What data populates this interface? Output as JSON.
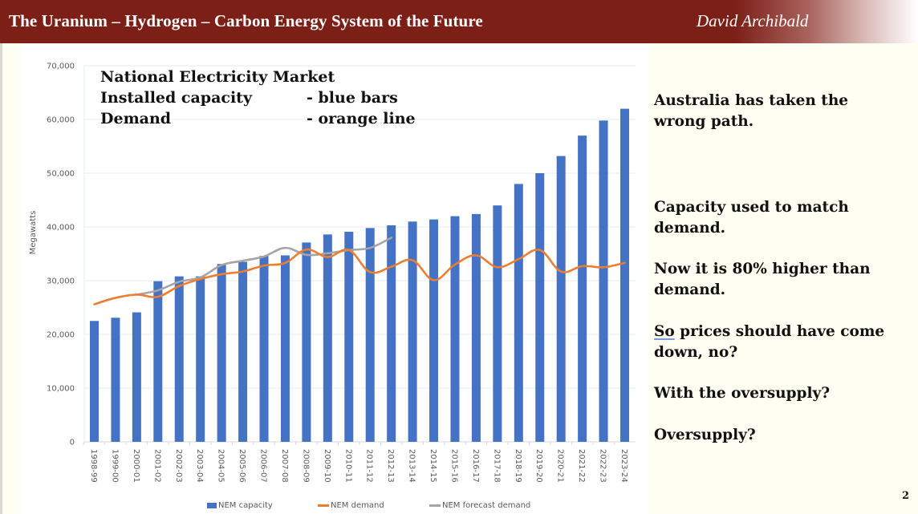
{
  "header": {
    "title": "The Uranium – Hydrogen – Carbon Energy System of the Future",
    "author": "David Archibald"
  },
  "overlay": {
    "line1": "National Electricity Market",
    "line2_left": "Installed capacity",
    "line2_right": "- blue bars",
    "line3_left": "Demand",
    "line3_right": "- orange line"
  },
  "notes": [
    "Australia has taken the\nwrong path.",
    "Capacity used to match\ndemand.",
    "Now it is 80% higher than\ndemand.",
    "prices should have come\ndown, no?",
    "With the oversupply?",
    "Oversupply?"
  ],
  "notes_underlined_word": "So",
  "page_number": "2",
  "colors": {
    "title_bar": "#7B1F17",
    "capacity": "#4472C4",
    "demand": "#ED7D31",
    "forecast": "#A5A5A5",
    "background": "#FEFEF2"
  },
  "chart_data": {
    "type": "bar",
    "title": "",
    "xlabel": "",
    "ylabel": "Megawatts",
    "ylim": [
      0,
      70000
    ],
    "yticks": [
      0,
      10000,
      20000,
      30000,
      40000,
      50000,
      60000,
      70000
    ],
    "ytick_labels": [
      "0",
      "10,000",
      "20,000",
      "30,000",
      "40,000",
      "50,000",
      "60,000",
      "70,000"
    ],
    "grid": true,
    "legend_position": "bottom",
    "categories": [
      "1998-99",
      "1999-00",
      "2000-01",
      "2001-02",
      "2002-03",
      "2003-04",
      "2004-05",
      "2005-06",
      "2006-07",
      "2007-08",
      "2008-09",
      "2009-10",
      "2010-11",
      "2011-12",
      "2012-13",
      "2013-14",
      "2014-15",
      "2015-16",
      "2016-17",
      "2017-18",
      "2018-19",
      "2019-20",
      "2020-21",
      "2021-22",
      "2022-23",
      "2023-24"
    ],
    "series": [
      {
        "name": "NEM capacity",
        "kind": "bar",
        "values": [
          22500,
          23100,
          24100,
          29900,
          30800,
          30800,
          33100,
          33500,
          34600,
          34700,
          37100,
          38600,
          39100,
          39800,
          40300,
          41000,
          41400,
          42000,
          42400,
          44000,
          48000,
          50000,
          53200,
          57000,
          59800,
          62000
        ]
      },
      {
        "name": "NEM demand",
        "kind": "line",
        "values": [
          25600,
          26800,
          27400,
          27000,
          29000,
          30300,
          31200,
          31700,
          32800,
          33300,
          35800,
          34400,
          35700,
          31600,
          32600,
          33800,
          30100,
          33000,
          34700,
          32500,
          34000,
          35700,
          31700,
          32700,
          32500,
          33300
        ]
      },
      {
        "name": "NEM forecast demand",
        "kind": "line",
        "values": [
          null,
          null,
          27400,
          28200,
          29800,
          30600,
          32900,
          33700,
          34500,
          36100,
          34800,
          35100,
          35700,
          36100,
          38000,
          null,
          null,
          null,
          null,
          null,
          null,
          null,
          null,
          null,
          null,
          null
        ]
      }
    ]
  }
}
